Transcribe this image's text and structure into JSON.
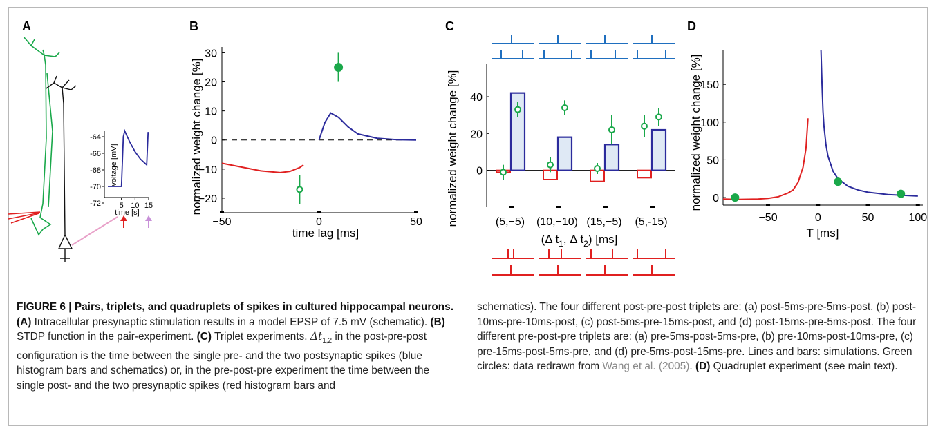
{
  "panels": {
    "A": {
      "label": "A",
      "inset": {
        "ylabel": "voltage [mV]",
        "xlabel": "time [s]",
        "yticks": [
          "-64",
          "-66",
          "-68",
          "-70",
          "-72"
        ],
        "xticks": [
          "5",
          "10",
          "15"
        ]
      }
    },
    "B": {
      "label": "B",
      "ylabel": "normalized weight change [%]",
      "xlabel": "time lag [ms]",
      "yticks": [
        "30",
        "20",
        "10",
        "0",
        "−10",
        "−20"
      ],
      "xticks": [
        "−50",
        "0",
        "50"
      ]
    },
    "C": {
      "label": "C",
      "ylabel": "normalized weight change [%]",
      "xlabel_prefix": "(Δ t",
      "xlabel_sub1": "1",
      "xlabel_mid": ", Δ t",
      "xlabel_sub2": "2",
      "xlabel_suffix": ") [ms]",
      "yticks": [
        "40",
        "20",
        "0"
      ],
      "xticks": [
        "(5,−5)",
        "(10,−10)",
        "(15,−5)",
        "(5,-15)"
      ]
    },
    "D": {
      "label": "D",
      "ylabel": "normalized weight change [%]",
      "xlabel": "T [ms]",
      "yticks": [
        "150",
        "100",
        "50",
        "0"
      ],
      "xticks": [
        "−50",
        "0",
        "50",
        "100"
      ]
    }
  },
  "chart_data": [
    {
      "type": "line",
      "panel": "A-inset",
      "xlabel": "time [s]",
      "ylabel": "voltage [mV]",
      "xlim": [
        0,
        15
      ],
      "ylim": [
        -72,
        -63
      ],
      "series": [
        {
          "x": [
            0,
            5,
            5.7,
            6.2,
            8,
            10,
            12,
            14.3,
            14.8,
            15
          ],
          "y": [
            -70,
            -70,
            -64,
            -63.3,
            -64.6,
            -65.8,
            -66.7,
            -67.4,
            -63.5,
            -63.5
          ]
        }
      ]
    },
    {
      "type": "line",
      "panel": "B",
      "xlabel": "time lag [ms]",
      "ylabel": "normalized weight change [%]",
      "xlim": [
        -50,
        50
      ],
      "ylim": [
        -25,
        32
      ],
      "series": [
        {
          "color": "#e02020",
          "x": [
            -50,
            -40,
            -30,
            -20,
            -15,
            -10,
            -8
          ],
          "y": [
            -8,
            -9.3,
            -10.6,
            -11.2,
            -10.8,
            -9.5,
            -8.6
          ]
        },
        {
          "color": "#2b2b9c",
          "x": [
            0,
            3,
            6,
            10,
            15,
            20,
            30,
            40,
            50
          ],
          "y": [
            0,
            6,
            9.3,
            7.8,
            4.5,
            2.1,
            0.6,
            0.1,
            0
          ]
        }
      ],
      "points": [
        {
          "x": -10,
          "y": -17,
          "err": 5,
          "filled": false
        },
        {
          "x": 10,
          "y": 25,
          "err": 5,
          "filled": true
        }
      ]
    },
    {
      "type": "bar",
      "panel": "C",
      "xlabel": "(Δ t1, Δ t2) [ms]",
      "ylabel": "normalized weight change [%]",
      "categories": [
        "(5,−5)",
        "(10,−10)",
        "(15,−5)",
        "(5,-15)"
      ],
      "ylim": [
        -20,
        58
      ],
      "series": [
        {
          "color": "#e02020",
          "values": [
            -1,
            -5,
            -6,
            -4
          ]
        },
        {
          "color": "#2b2b9c",
          "values": [
            42,
            18,
            14,
            22
          ]
        }
      ],
      "points_pre_post_pre": [
        {
          "y": -1,
          "err": 4
        },
        {
          "y": 3,
          "err": 4
        },
        {
          "y": 1,
          "err": 3
        },
        {
          "y": 24,
          "err": 6
        }
      ],
      "points_post_pre_post": [
        {
          "y": 33,
          "err": 4
        },
        {
          "y": 34,
          "err": 4
        },
        {
          "y": 22,
          "err": 8
        },
        {
          "y": 29,
          "err": 5
        }
      ]
    },
    {
      "type": "line",
      "panel": "D",
      "xlabel": "T [ms]",
      "ylabel": "normalized weight change [%]",
      "xlim": [
        -95,
        105
      ],
      "ylim": [
        -10,
        195
      ],
      "series": [
        {
          "color": "#e02020",
          "x": [
            -95,
            -80,
            -60,
            -50,
            -40,
            -30,
            -25,
            -20,
            -15,
            -12,
            -10
          ],
          "y": [
            -2,
            -2.5,
            -2,
            -1,
            1,
            6,
            10,
            20,
            40,
            65,
            105
          ]
        },
        {
          "color": "#2b2b9c",
          "x": [
            3,
            4,
            5,
            6,
            8,
            10,
            15,
            20,
            30,
            40,
            50,
            70,
            100
          ],
          "y": [
            195,
            150,
            115,
            95,
            70,
            55,
            35,
            25,
            15,
            10,
            7,
            4,
            2
          ]
        }
      ],
      "points": [
        {
          "x": -83,
          "y": 0
        },
        {
          "x": 20,
          "y": 21
        },
        {
          "x": 83,
          "y": 5
        }
      ]
    }
  ],
  "caption": {
    "fig_label": "FIGURE 6 | Pairs, triplets, and quadruplets of spikes in cultured hippocampal neurons.",
    "a_label": "(A)",
    "a_text": "Intracellular presynaptic stimulation results in a model EPSP of 7.5 mV (schematic).",
    "b_label": "(B)",
    "b_text": "STDP function in the pair-experiment.",
    "c_label": "(C)",
    "c_text1": "Triplet experiments.",
    "c_math": "Δt",
    "c_sub": "1,2",
    "c_text2": "in the post-pre-post configuration is the time between the single pre- and the two postsynaptic spikes (blue histogram bars and schematics) or, in the pre-post-pre experiment the time between the single post- and the two presynaptic spikes (red histogram bars and",
    "right_text1": "schematics). The four different post-pre-post triplets are: (a) post-5ms-pre-5ms-post, (b) post-10ms-pre-10ms-post, (c) post-5ms-pre-15ms-post, and (d) post-15ms-pre-5ms-post. The four different pre-post-pre triplets are: (a) pre-5ms-post-5ms-pre, (b) pre-10ms-post-10ms-pre, (c) pre-15ms-post-5ms-pre, and (d) pre-5ms-post-15ms-pre. Lines and bars: simulations. Green circles: data redrawn from",
    "cite": "Wang et al. (2005)",
    "right_text2": ".",
    "d_label": "(D)",
    "d_text": "Quadruplet experiment (see main text)."
  },
  "colors": {
    "blue": "#2b2b9c",
    "red": "#e02020",
    "green": "#1aa84a",
    "bar_fill": "#dfe9f5",
    "schematic_blue": "#1f6fbf"
  }
}
